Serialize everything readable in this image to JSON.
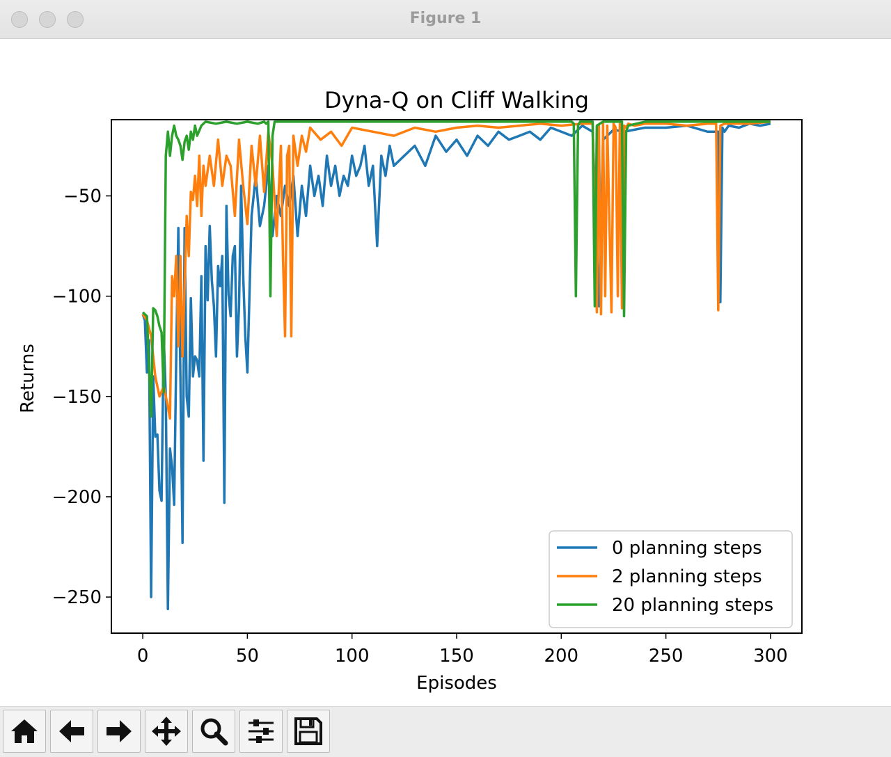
{
  "window": {
    "title": "Figure 1"
  },
  "toolbar": {
    "buttons": [
      {
        "name": "home-button",
        "icon": "home-icon"
      },
      {
        "name": "back-button",
        "icon": "arrow-left-icon"
      },
      {
        "name": "forward-button",
        "icon": "arrow-right-icon"
      },
      {
        "name": "pan-button",
        "icon": "move-icon"
      },
      {
        "name": "zoom-button",
        "icon": "magnifier-icon"
      },
      {
        "name": "configure-subplots-button",
        "icon": "sliders-icon"
      },
      {
        "name": "save-button",
        "icon": "floppy-icon"
      }
    ]
  },
  "chart_data": {
    "type": "line",
    "title": "Dyna-Q on Cliff Walking",
    "xlabel": "Episodes",
    "ylabel": "Returns",
    "xlim": [
      -15,
      315
    ],
    "ylim": [
      -268,
      -12
    ],
    "xticks": [
      0,
      50,
      100,
      150,
      200,
      250,
      300
    ],
    "yticks": [
      -50,
      -100,
      -150,
      -200,
      -250
    ],
    "xtick_labels": [
      "0",
      "50",
      "100",
      "150",
      "200",
      "250",
      "300"
    ],
    "ytick_labels": [
      "−50",
      "−100",
      "−150",
      "−200",
      "−250"
    ],
    "legend_position": "lower-right",
    "colors": {
      "0 planning steps": "#1f77b4",
      "2 planning steps": "#ff7f0e",
      "20 planning steps": "#2ca02c"
    },
    "series": [
      {
        "name": "0 planning steps",
        "x": [
          0,
          1,
          2,
          3,
          4,
          5,
          6,
          7,
          8,
          9,
          10,
          11,
          12,
          13,
          14,
          15,
          16,
          17,
          18,
          19,
          20,
          21,
          22,
          23,
          24,
          25,
          26,
          27,
          28,
          29,
          30,
          31,
          32,
          33,
          34,
          35,
          36,
          37,
          38,
          39,
          40,
          41,
          42,
          43,
          44,
          45,
          46,
          47,
          48,
          49,
          50,
          52,
          54,
          56,
          58,
          60,
          62,
          64,
          66,
          68,
          70,
          72,
          74,
          76,
          78,
          80,
          82,
          84,
          86,
          88,
          90,
          92,
          94,
          96,
          98,
          100,
          102,
          104,
          106,
          108,
          110,
          112,
          114,
          116,
          118,
          120,
          125,
          130,
          135,
          140,
          145,
          150,
          155,
          160,
          165,
          170,
          175,
          180,
          185,
          190,
          195,
          200,
          205,
          210,
          215,
          218,
          220,
          225,
          230,
          240,
          250,
          260,
          270,
          275,
          276,
          277,
          278,
          280,
          285,
          290,
          295,
          300
        ],
        "values": [
          -109,
          -112,
          -138,
          -122,
          -250,
          -140,
          -170,
          -169,
          -197,
          -202,
          -120,
          -150,
          -256,
          -176,
          -185,
          -204,
          -130,
          -66,
          -140,
          -223,
          -66,
          -150,
          -160,
          -101,
          -140,
          -130,
          -132,
          -140,
          -90,
          -182,
          -75,
          -102,
          -65,
          -92,
          -105,
          -130,
          -85,
          -95,
          -80,
          -203,
          -55,
          -99,
          -110,
          -80,
          -75,
          -130,
          -105,
          -45,
          -90,
          -120,
          -138,
          -60,
          -40,
          -65,
          -55,
          -35,
          -70,
          -50,
          -60,
          -45,
          -55,
          -40,
          -70,
          -45,
          -60,
          -35,
          -50,
          -40,
          -55,
          -30,
          -45,
          -35,
          -50,
          -40,
          -45,
          -30,
          -40,
          -35,
          -25,
          -45,
          -35,
          -75,
          -30,
          -40,
          -25,
          -35,
          -30,
          -25,
          -35,
          -20,
          -28,
          -22,
          -30,
          -20,
          -25,
          -18,
          -22,
          -20,
          -18,
          -22,
          -16,
          -18,
          -20,
          -15,
          -18,
          -105,
          -22,
          -17,
          -18,
          -16,
          -16,
          -15,
          -18,
          -18,
          -103,
          -16,
          -18,
          -15,
          -16,
          -14,
          -15,
          -14
        ]
      },
      {
        "name": "2 planning steps",
        "x": [
          0,
          2,
          4,
          6,
          8,
          10,
          12,
          13,
          14,
          15,
          16,
          17,
          18,
          19,
          20,
          21,
          22,
          23,
          24,
          25,
          26,
          27,
          28,
          29,
          30,
          32,
          34,
          36,
          38,
          40,
          42,
          44,
          46,
          48,
          50,
          52,
          54,
          56,
          58,
          60,
          62,
          64,
          66,
          67,
          68,
          69,
          70,
          71,
          72,
          74,
          76,
          78,
          80,
          85,
          90,
          95,
          100,
          110,
          120,
          130,
          140,
          150,
          160,
          170,
          180,
          190,
          200,
          210,
          215,
          217,
          218,
          219,
          220,
          221,
          222,
          224,
          225,
          226,
          227,
          228,
          229,
          230,
          231,
          232,
          235,
          240,
          250,
          260,
          270,
          274,
          275,
          276,
          278,
          280,
          290,
          300
        ],
        "values": [
          -109,
          -112,
          -120,
          -140,
          -150,
          -145,
          -155,
          -161,
          -90,
          -100,
          -80,
          -125,
          -80,
          -130,
          -95,
          -60,
          -80,
          -48,
          -52,
          -40,
          -55,
          -30,
          -60,
          -35,
          -45,
          -30,
          -45,
          -22,
          -45,
          -30,
          -35,
          -60,
          -22,
          -45,
          -64,
          -25,
          -45,
          -20,
          -48,
          -18,
          -35,
          -70,
          -25,
          -80,
          -120,
          -30,
          -25,
          -120,
          -20,
          -35,
          -20,
          -28,
          -16,
          -22,
          -18,
          -25,
          -16,
          -18,
          -20,
          -16,
          -18,
          -16,
          -15,
          -16,
          -15,
          -14,
          -15,
          -14,
          -14,
          -108,
          -15,
          -109,
          -14,
          -100,
          -15,
          -108,
          -14,
          -16,
          -100,
          -14,
          -106,
          -15,
          -16,
          -14,
          -15,
          -14,
          -14,
          -15,
          -14,
          -14,
          -107,
          -15,
          -14,
          -14,
          -14,
          -13
        ]
      },
      {
        "name": "20 planning steps",
        "x": [
          0,
          2,
          3,
          4,
          5,
          6,
          7,
          8,
          9,
          10,
          11,
          12,
          13,
          14,
          15,
          16,
          17,
          18,
          19,
          20,
          21,
          22,
          23,
          24,
          25,
          26,
          28,
          30,
          35,
          40,
          45,
          50,
          55,
          58,
          59,
          60,
          61,
          62,
          63,
          64,
          80,
          100,
          150,
          200,
          205,
          206,
          207,
          208,
          209,
          210,
          214,
          215,
          216,
          217,
          220,
          225,
          228,
          229,
          230,
          231,
          232,
          240,
          250,
          300
        ],
        "values": [
          -108,
          -110,
          -135,
          -160,
          -106,
          -107,
          -110,
          -115,
          -118,
          -148,
          -30,
          -18,
          -30,
          -20,
          -15,
          -20,
          -22,
          -25,
          -32,
          -23,
          -20,
          -27,
          -18,
          -22,
          -15,
          -20,
          -15,
          -13,
          -14,
          -13,
          -14,
          -13,
          -14,
          -13,
          -14,
          -13,
          -100,
          -20,
          -13,
          -13,
          -13,
          -13,
          -13,
          -13,
          -13,
          -14,
          -100,
          -15,
          -13,
          -13,
          -13,
          -13,
          -105,
          -15,
          -13,
          -13,
          -13,
          -13,
          -110,
          -18,
          -15,
          -13,
          -13,
          -13
        ]
      }
    ]
  }
}
